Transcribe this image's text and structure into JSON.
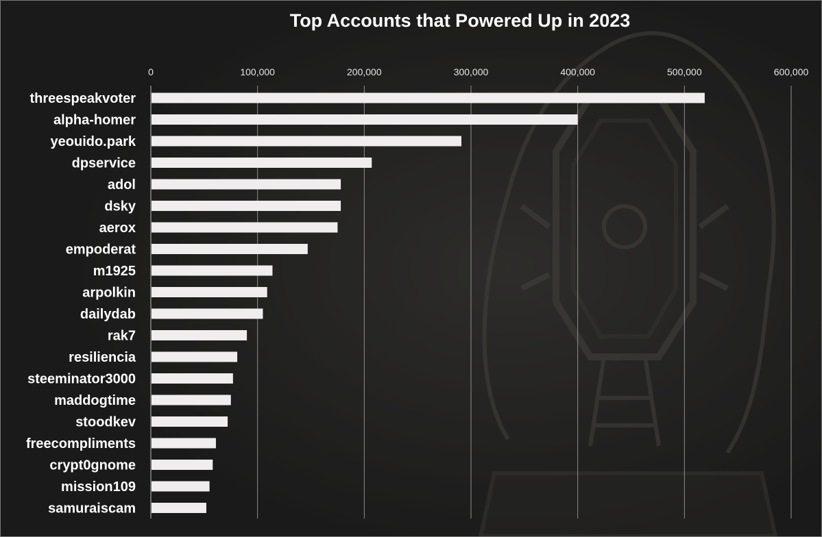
{
  "colors": {
    "background": "#1c1c1c",
    "bar": "#efeded",
    "gridline": "#8f8f8f",
    "text": "#ffffff"
  },
  "chart_data": {
    "type": "bar",
    "orientation": "horizontal",
    "title": "Top Accounts that Powered Up in 2023",
    "xlabel": "",
    "ylabel": "",
    "xlim": [
      0,
      600000
    ],
    "x_ticks": [
      0,
      100000,
      200000,
      300000,
      400000,
      500000,
      600000
    ],
    "x_tick_labels": [
      "0",
      "100,000",
      "200,000",
      "300,000",
      "400,000",
      "500,000",
      "600,000"
    ],
    "x_axis_position": "top",
    "grid": true,
    "legend": "none",
    "categories": [
      "threespeakvoter",
      "alpha-homer",
      "yeouido.park",
      "dpservice",
      "adol",
      "dsky",
      "aerox",
      "empoderat",
      "m1925",
      "arpolkin",
      "dailydab",
      "rak7",
      "resiliencia",
      "steeminator3000",
      "maddogtime",
      "stoodkev",
      "freecompliments",
      "crypt0gnome",
      "mission109",
      "samuraiscam"
    ],
    "values": [
      519000,
      400000,
      291000,
      207000,
      178000,
      178000,
      175000,
      147000,
      114000,
      109000,
      105000,
      90000,
      81000,
      77000,
      75000,
      72000,
      61000,
      58000,
      55000,
      52000
    ]
  }
}
